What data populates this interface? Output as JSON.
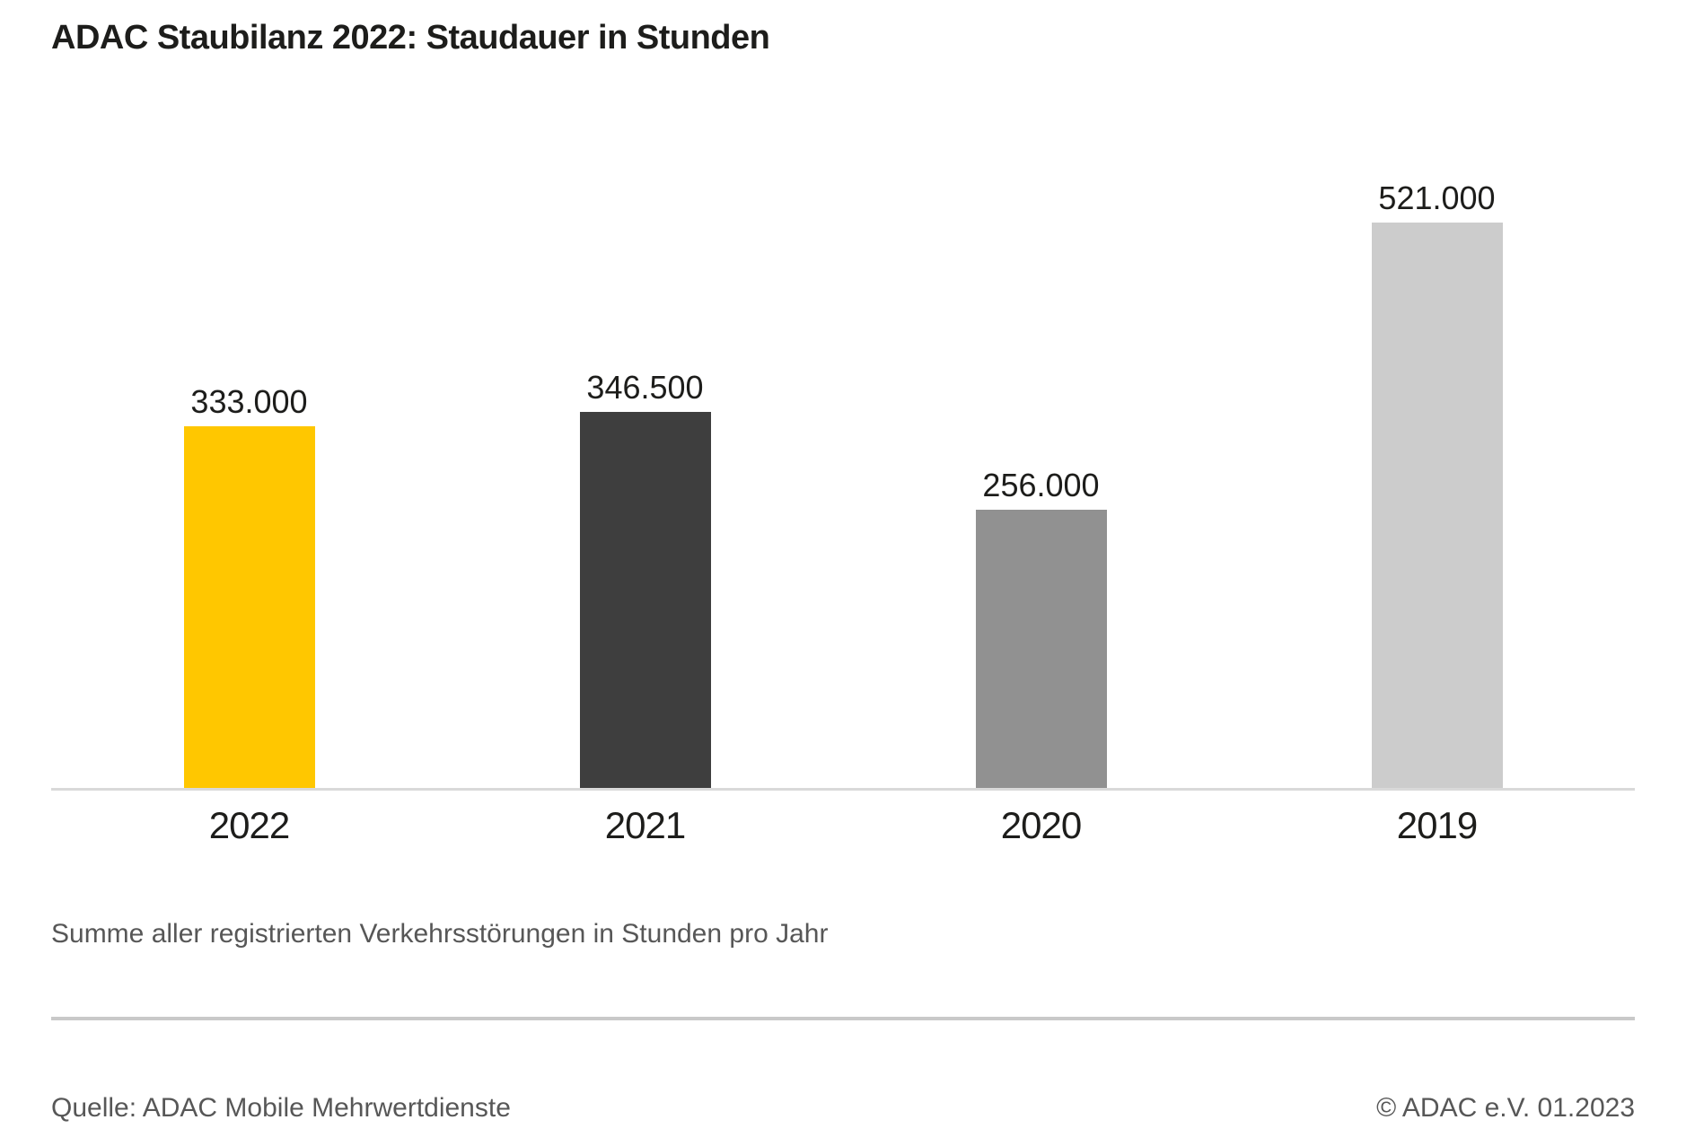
{
  "title": "ADAC Staubilanz 2022: Staudauer in Stunden",
  "subtitle": "Summe aller registrierten Verkehrsstörungen in Stunden pro Jahr",
  "footer": {
    "source": "Quelle: ADAC Mobile Mehrwertdienste",
    "copyright": "© ADAC e.V. 01.2023"
  },
  "colors": {
    "background": "#ffffff",
    "text_primary": "#1d1d1b",
    "text_secondary": "#575757",
    "axis_line": "#d9d9d9",
    "divider": "#c9c9c9",
    "brand_yellow": "#ffc700"
  },
  "chart_data": {
    "type": "bar",
    "title": "ADAC Staubilanz 2022: Staudauer in Stunden",
    "categories": [
      "2022",
      "2021",
      "2020",
      "2019"
    ],
    "values": [
      333000,
      346500,
      256000,
      521000
    ],
    "value_labels": [
      "333.000",
      "346.500",
      "256.000",
      "521.000"
    ],
    "bar_colors": [
      "#ffc700",
      "#3e3e3e",
      "#919191",
      "#cccccc"
    ],
    "xlabel": "",
    "ylabel": "Staudauer in Stunden",
    "ylim": [
      0,
      521000
    ],
    "grid": false,
    "legend": false,
    "note": "Summe aller registrierten Verkehrsstörungen in Stunden pro Jahr"
  }
}
